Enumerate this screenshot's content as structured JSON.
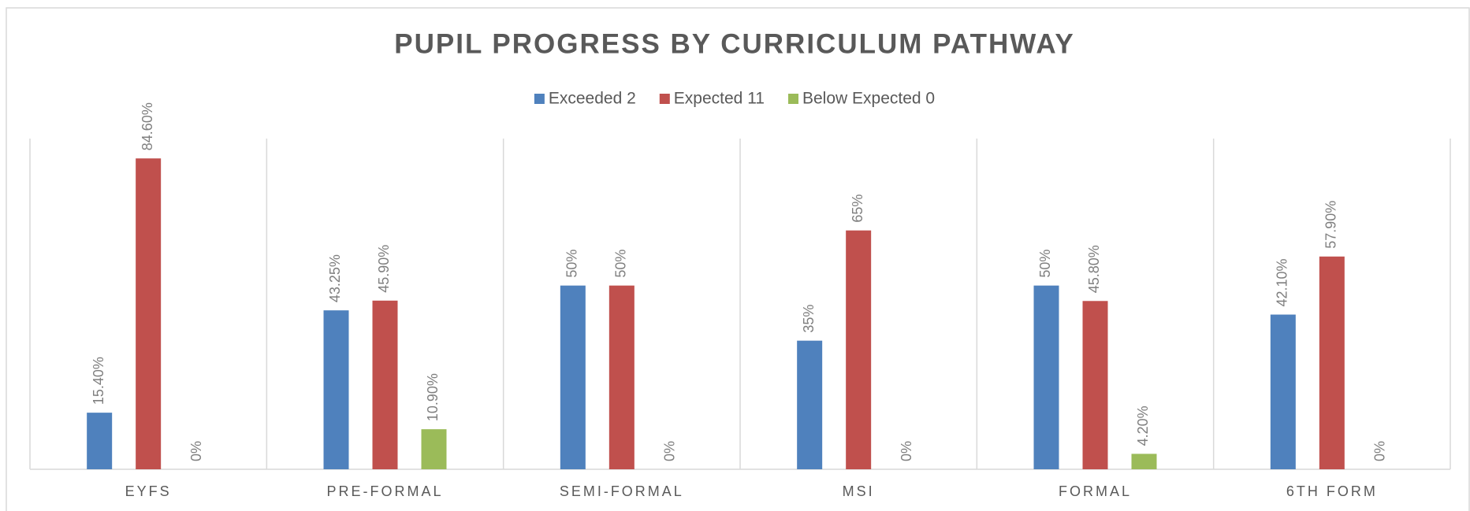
{
  "chart_data": {
    "type": "bar",
    "title": "PUPIL PROGRESS BY CURRICULUM PATHWAY",
    "categories": [
      "EYFS",
      "PRE-FORMAL",
      "SEMI-FORMAL",
      "MSI",
      "FORMAL",
      "6TH FORM"
    ],
    "series": [
      {
        "name": "Exceeded 2",
        "color": "#4f81bd",
        "values": [
          15.4,
          43.25,
          50,
          35,
          50,
          42.1
        ],
        "value_labels": [
          "15.40%",
          "43.25%",
          "50%",
          "35%",
          "50%",
          "42.10%"
        ]
      },
      {
        "name": "Expected 11",
        "color": "#c0504d",
        "values": [
          84.6,
          45.9,
          50,
          65,
          45.8,
          57.9
        ],
        "value_labels": [
          "84.60%",
          "45.90%",
          "50%",
          "65%",
          "45.80%",
          "57.90%"
        ]
      },
      {
        "name": "Below Expected 0",
        "color": "#9bbb59",
        "values": [
          0,
          10.9,
          0,
          0,
          4.2,
          0
        ],
        "value_labels": [
          "0%",
          "10.90%",
          "0%",
          "0%",
          "4.20%",
          "0%"
        ]
      }
    ],
    "ylim": [
      0,
      90
    ],
    "legend": "top",
    "grid": false
  }
}
